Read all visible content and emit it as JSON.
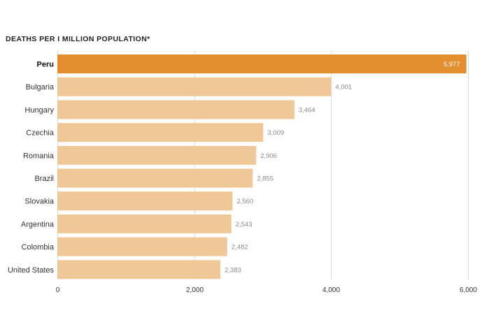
{
  "chart_data": {
    "type": "bar",
    "orientation": "horizontal",
    "title": "DEATHS PER I MILLION POPULATION*",
    "xlabel": "",
    "ylabel": "",
    "categories": [
      "Peru",
      "Bulgaria",
      "Hungary",
      "Czechia",
      "Romania",
      "Brazil",
      "Slovakia",
      "Argentina",
      "Colombia",
      "United States"
    ],
    "values": [
      5977,
      4001,
      3464,
      3009,
      2906,
      2855,
      2560,
      2543,
      2482,
      2383
    ],
    "value_labels": [
      "5,977",
      "4,001",
      "3,464",
      "3,009",
      "2,906",
      "2,855",
      "2,560",
      "2,543",
      "2,482",
      "2,383"
    ],
    "highlight": "Peru",
    "xlim": [
      0,
      6000
    ],
    "xticks": [
      0,
      2000,
      4000,
      6000
    ],
    "xtick_labels": [
      "0",
      "2,000",
      "4,000",
      "6,000"
    ],
    "grid": true,
    "colors": {
      "bar": "#f0c898",
      "highlight": "#e38d2e",
      "grid": "#dcdcdc"
    }
  }
}
